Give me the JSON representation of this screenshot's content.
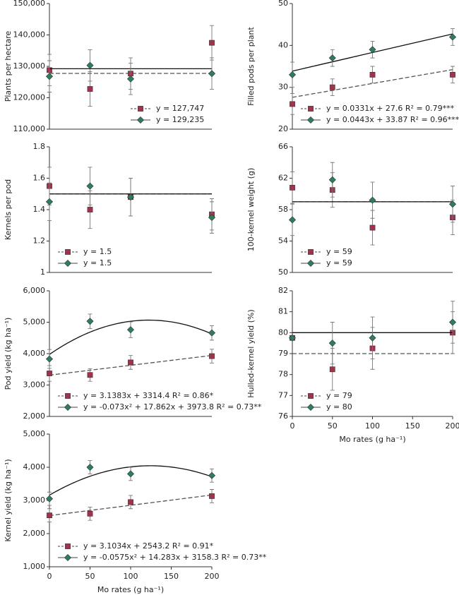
{
  "chart_data": [
    {
      "type": "scatter",
      "ylabel": "Plants per hectare",
      "x": [
        0,
        50,
        100,
        200
      ],
      "xlim": [
        0,
        200
      ],
      "ylim": [
        110000,
        150000
      ],
      "yticks": [
        {
          "value": 110000,
          "label": "110,000"
        },
        {
          "value": 120000,
          "label": "120,000"
        },
        {
          "value": 130000,
          "label": "130,000"
        },
        {
          "value": 140000,
          "label": "140,000"
        },
        {
          "value": 150000,
          "label": "150,000"
        }
      ],
      "legend_position": "bottom-right",
      "series": [
        {
          "color": "#a3324d",
          "marker": "square",
          "line_style": "dashed",
          "values": [
            128800,
            122800,
            127700,
            137500
          ],
          "errors": [
            5000,
            5500,
            5000,
            5500
          ],
          "fit": {
            "coefficients": [
              127747
            ],
            "label": "y = 127,747"
          }
        },
        {
          "color": "#2e7d5b",
          "marker": "diamond",
          "line_style": "solid",
          "values": [
            126800,
            130300,
            126000,
            127700
          ],
          "errors": [
            5000,
            5000,
            5000,
            5000
          ],
          "fit": {
            "coefficients": [
              129235
            ],
            "label": "y = 129,235"
          }
        }
      ]
    },
    {
      "type": "scatter",
      "ylabel": "Filled pods per plant",
      "x": [
        0,
        50,
        100,
        200
      ],
      "xlim": [
        0,
        200
      ],
      "ylim": [
        20,
        50
      ],
      "yticks": [
        20,
        30,
        40,
        50
      ],
      "legend_position": "bottom-left",
      "series": [
        {
          "color": "#a3324d",
          "marker": "square",
          "line_style": "dashed",
          "values": [
            26,
            30,
            33,
            33
          ],
          "errors": [
            2.5,
            2,
            2,
            2
          ],
          "fit": {
            "coefficients": [
              27.6,
              0.0331
            ],
            "label": "y = 0.0331x + 27.6 R² = 0.79***"
          }
        },
        {
          "color": "#2e7d5b",
          "marker": "diamond",
          "line_style": "solid",
          "values": [
            33,
            37,
            39,
            42
          ],
          "errors": [
            3,
            2,
            2,
            2
          ],
          "fit": {
            "coefficients": [
              33.87,
              0.0443
            ],
            "label": "y = 0.0443x + 33.87 R² = 0.96***"
          }
        }
      ]
    },
    {
      "type": "scatter",
      "ylabel": "Kernels per pod",
      "x": [
        0,
        50,
        100,
        200
      ],
      "xlim": [
        0,
        200
      ],
      "ylim": [
        1,
        1.8
      ],
      "yticks": [
        1,
        1.2,
        1.4,
        1.6,
        1.8
      ],
      "legend_position": "bottom-left",
      "series": [
        {
          "color": "#a3324d",
          "marker": "square",
          "line_style": "dashed",
          "values": [
            1.55,
            1.4,
            1.48,
            1.37
          ],
          "errors": [
            0.12,
            0.12,
            0.12,
            0.1
          ],
          "fit": {
            "coefficients": [
              1.5
            ],
            "label": "y = 1.5"
          }
        },
        {
          "color": "#2e7d5b",
          "marker": "diamond",
          "line_style": "solid",
          "values": [
            1.45,
            1.55,
            1.48,
            1.35
          ],
          "errors": [
            0.12,
            0.12,
            0.12,
            0.1
          ],
          "fit": {
            "coefficients": [
              1.5
            ],
            "label": "y = 1.5"
          }
        }
      ]
    },
    {
      "type": "scatter",
      "ylabel": "100-kernel weight (g)",
      "x": [
        0,
        50,
        100,
        200
      ],
      "xlim": [
        0,
        200
      ],
      "ylim": [
        50,
        66
      ],
      "yticks": [
        50,
        54,
        58,
        62,
        66
      ],
      "legend_position": "bottom-left",
      "series": [
        {
          "color": "#a3324d",
          "marker": "square",
          "line_style": "dashed",
          "values": [
            60.8,
            60.5,
            55.7,
            57
          ],
          "errors": [
            2,
            2.2,
            2.2,
            2.2
          ],
          "fit": {
            "coefficients": [
              59
            ],
            "label": "y = 59"
          }
        },
        {
          "color": "#2e7d5b",
          "marker": "diamond",
          "line_style": "solid",
          "values": [
            56.7,
            61.8,
            59.2,
            58.7
          ],
          "errors": [
            2,
            2.2,
            2.3,
            2.3
          ],
          "fit": {
            "coefficients": [
              59
            ],
            "label": "y = 59"
          }
        }
      ]
    },
    {
      "type": "scatter",
      "ylabel": "Pod yield (kg ha⁻¹)",
      "x": [
        0,
        50,
        100,
        200
      ],
      "xlim": [
        0,
        200
      ],
      "ylim": [
        2000,
        6000
      ],
      "yticks": [
        {
          "value": 2000,
          "label": "2,000"
        },
        {
          "value": 3000,
          "label": "3,000"
        },
        {
          "value": 4000,
          "label": "4,000"
        },
        {
          "value": 5000,
          "label": "5,000"
        },
        {
          "value": 6000,
          "label": "6,000"
        }
      ],
      "legend_position": "bottom-left",
      "series": [
        {
          "color": "#a3324d",
          "marker": "square",
          "line_style": "dashed",
          "values": [
            3370,
            3320,
            3720,
            3920
          ],
          "errors": [
            250,
            200,
            220,
            220
          ],
          "fit": {
            "coefficients": [
              3314.4,
              3.1383
            ],
            "label": "y = 3.1383x + 3314.4 R² = 0.86*"
          }
        },
        {
          "color": "#2e7d5b",
          "marker": "diamond",
          "line_style": "solid",
          "values": [
            3830,
            5030,
            4760,
            4660
          ],
          "errors": [
            300,
            230,
            250,
            230
          ],
          "fit": {
            "coefficients": [
              3973.8,
              17.862,
              -0.073
            ],
            "label": "y = -0.073x² + 17.862x + 3973.8 R² = 0.73**"
          }
        }
      ]
    },
    {
      "type": "scatter",
      "ylabel": "Hulled-kernel yield (%)",
      "xlabel": "Mo rates (g ha⁻¹)",
      "x": [
        0,
        50,
        100,
        200
      ],
      "xlim": [
        0,
        200
      ],
      "xticks": [
        0,
        50,
        100,
        150,
        200
      ],
      "ylim": [
        76,
        82
      ],
      "yticks": [
        76,
        77,
        78,
        79,
        80,
        81,
        82
      ],
      "legend_position": "bottom-left",
      "series": [
        {
          "color": "#a3324d",
          "marker": "square",
          "line_style": "dashed",
          "values": [
            79.75,
            78.25,
            79.25,
            80
          ],
          "errors": [
            0,
            1,
            1,
            1
          ],
          "fit": {
            "coefficients": [
              79
            ],
            "label": "y = 79"
          }
        },
        {
          "color": "#2e7d5b",
          "marker": "diamond",
          "line_style": "solid",
          "values": [
            79.75,
            79.5,
            79.75,
            80.5
          ],
          "errors": [
            0,
            1,
            1,
            1
          ],
          "fit": {
            "coefficients": [
              80
            ],
            "label": "y = 80"
          }
        }
      ]
    },
    {
      "type": "scatter",
      "ylabel": "Kernel yield (kg ha⁻¹)",
      "xlabel": "Mo rates (g ha⁻¹)",
      "x": [
        0,
        50,
        100,
        200
      ],
      "xlim": [
        0,
        200
      ],
      "xticks": [
        0,
        50,
        100,
        150,
        200
      ],
      "ylim": [
        1000,
        5000
      ],
      "yticks": [
        {
          "value": 1000,
          "label": "1,000"
        },
        {
          "value": 2000,
          "label": "2,000"
        },
        {
          "value": 3000,
          "label": "3,000"
        },
        {
          "value": 4000,
          "label": "4,000"
        },
        {
          "value": 5000,
          "label": "5,000"
        }
      ],
      "legend_position": "bottom-left",
      "series": [
        {
          "color": "#a3324d",
          "marker": "square",
          "line_style": "dashed",
          "values": [
            2550,
            2600,
            2950,
            3130
          ],
          "errors": [
            200,
            200,
            200,
            200
          ],
          "fit": {
            "coefficients": [
              2543.2,
              3.1034
            ],
            "label": "y = 3.1034x + 2543.2 R² = 0.91*"
          }
        },
        {
          "color": "#2e7d5b",
          "marker": "diamond",
          "line_style": "solid",
          "values": [
            3050,
            4000,
            3800,
            3750
          ],
          "errors": [
            200,
            200,
            200,
            200
          ],
          "fit": {
            "coefficients": [
              3158.3,
              14.283,
              -0.0575
            ],
            "label": "y = -0.0575x² + 14.283x + 3158.3 R² = 0.73**"
          }
        }
      ]
    }
  ]
}
